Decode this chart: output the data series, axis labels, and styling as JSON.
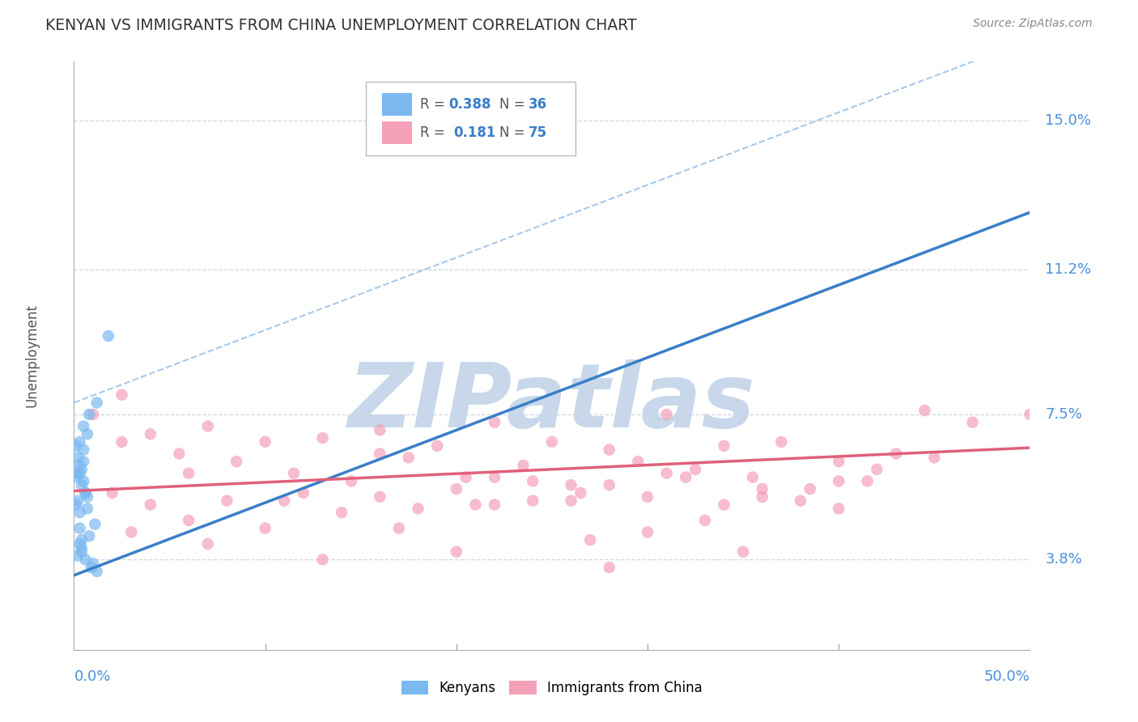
{
  "title": "KENYAN VS IMMIGRANTS FROM CHINA UNEMPLOYMENT CORRELATION CHART",
  "source": "Source: ZipAtlas.com",
  "ylabel": "Unemployment",
  "y_ticks": [
    3.8,
    7.5,
    11.2,
    15.0
  ],
  "x_range": [
    0.0,
    50.0
  ],
  "y_range": [
    1.5,
    16.5
  ],
  "kenyan_color": "#7bb8f0",
  "china_color": "#f4a0b8",
  "blue_line_color": "#3a7ec8",
  "blue_dash_color": "#a8c8e8",
  "pink_line_color": "#e0607a",
  "blue_slope": 0.185,
  "blue_intercept": 3.4,
  "blue_dash_slope": 0.185,
  "blue_dash_intercept": 7.8,
  "pink_slope": 0.022,
  "pink_intercept": 5.55,
  "kenyan_scatter": [
    [
      0.3,
      6.8
    ],
    [
      0.5,
      7.2
    ],
    [
      0.2,
      5.3
    ],
    [
      0.4,
      5.7
    ],
    [
      0.6,
      5.5
    ],
    [
      0.1,
      6.0
    ],
    [
      0.3,
      6.2
    ],
    [
      0.5,
      5.8
    ],
    [
      0.7,
      5.4
    ],
    [
      0.2,
      5.9
    ],
    [
      0.4,
      6.1
    ],
    [
      0.6,
      5.5
    ],
    [
      0.3,
      5.0
    ],
    [
      0.8,
      7.5
    ],
    [
      1.2,
      7.8
    ],
    [
      0.1,
      5.2
    ],
    [
      0.5,
      6.6
    ],
    [
      0.3,
      4.6
    ],
    [
      0.4,
      4.3
    ],
    [
      0.7,
      7.0
    ],
    [
      0.2,
      3.9
    ],
    [
      0.4,
      4.1
    ],
    [
      0.8,
      4.4
    ],
    [
      1.1,
      4.7
    ],
    [
      0.3,
      4.2
    ],
    [
      0.4,
      4.0
    ],
    [
      0.6,
      3.8
    ],
    [
      0.9,
      3.6
    ],
    [
      1.0,
      3.7
    ],
    [
      1.2,
      3.5
    ],
    [
      0.2,
      6.4
    ],
    [
      0.1,
      6.7
    ],
    [
      0.7,
      5.1
    ],
    [
      1.8,
      9.5
    ],
    [
      0.3,
      6.0
    ],
    [
      0.5,
      6.3
    ]
  ],
  "china_scatter": [
    [
      1.0,
      7.5
    ],
    [
      2.5,
      6.8
    ],
    [
      4.0,
      7.0
    ],
    [
      5.5,
      6.5
    ],
    [
      7.0,
      7.2
    ],
    [
      8.5,
      6.3
    ],
    [
      10.0,
      6.8
    ],
    [
      11.5,
      6.0
    ],
    [
      13.0,
      6.9
    ],
    [
      14.5,
      5.8
    ],
    [
      16.0,
      7.1
    ],
    [
      17.5,
      6.4
    ],
    [
      19.0,
      6.7
    ],
    [
      20.5,
      5.9
    ],
    [
      22.0,
      7.3
    ],
    [
      23.5,
      6.2
    ],
    [
      25.0,
      6.8
    ],
    [
      26.5,
      5.5
    ],
    [
      28.0,
      6.6
    ],
    [
      29.5,
      6.3
    ],
    [
      31.0,
      7.5
    ],
    [
      32.5,
      6.1
    ],
    [
      34.0,
      6.7
    ],
    [
      35.5,
      5.9
    ],
    [
      37.0,
      6.8
    ],
    [
      38.5,
      5.6
    ],
    [
      40.0,
      6.3
    ],
    [
      41.5,
      5.8
    ],
    [
      43.0,
      6.5
    ],
    [
      44.5,
      7.6
    ],
    [
      2.0,
      5.5
    ],
    [
      4.0,
      5.2
    ],
    [
      6.0,
      4.8
    ],
    [
      8.0,
      5.3
    ],
    [
      10.0,
      4.6
    ],
    [
      12.0,
      5.5
    ],
    [
      14.0,
      5.0
    ],
    [
      16.0,
      5.4
    ],
    [
      18.0,
      5.1
    ],
    [
      20.0,
      5.6
    ],
    [
      22.0,
      5.2
    ],
    [
      24.0,
      5.8
    ],
    [
      26.0,
      5.3
    ],
    [
      28.0,
      5.7
    ],
    [
      30.0,
      5.4
    ],
    [
      32.0,
      5.9
    ],
    [
      34.0,
      5.2
    ],
    [
      36.0,
      5.6
    ],
    [
      38.0,
      5.3
    ],
    [
      40.0,
      5.8
    ],
    [
      3.0,
      4.5
    ],
    [
      7.0,
      4.2
    ],
    [
      13.0,
      3.8
    ],
    [
      20.0,
      4.0
    ],
    [
      24.0,
      5.3
    ],
    [
      27.0,
      4.3
    ],
    [
      33.0,
      4.8
    ],
    [
      17.0,
      4.6
    ],
    [
      22.0,
      5.9
    ],
    [
      30.0,
      4.5
    ],
    [
      35.0,
      4.0
    ],
    [
      28.0,
      3.6
    ],
    [
      40.0,
      5.1
    ],
    [
      45.0,
      6.4
    ],
    [
      2.5,
      8.0
    ],
    [
      6.0,
      6.0
    ],
    [
      11.0,
      5.3
    ],
    [
      16.0,
      6.5
    ],
    [
      21.0,
      5.2
    ],
    [
      26.0,
      5.7
    ],
    [
      31.0,
      6.0
    ],
    [
      36.0,
      5.4
    ],
    [
      42.0,
      6.1
    ],
    [
      47.0,
      7.3
    ],
    [
      50.0,
      7.5
    ]
  ],
  "background_color": "#ffffff",
  "grid_color": "#d0d8e0",
  "watermark": "ZIPatlas",
  "watermark_color": "#c8d8ea"
}
